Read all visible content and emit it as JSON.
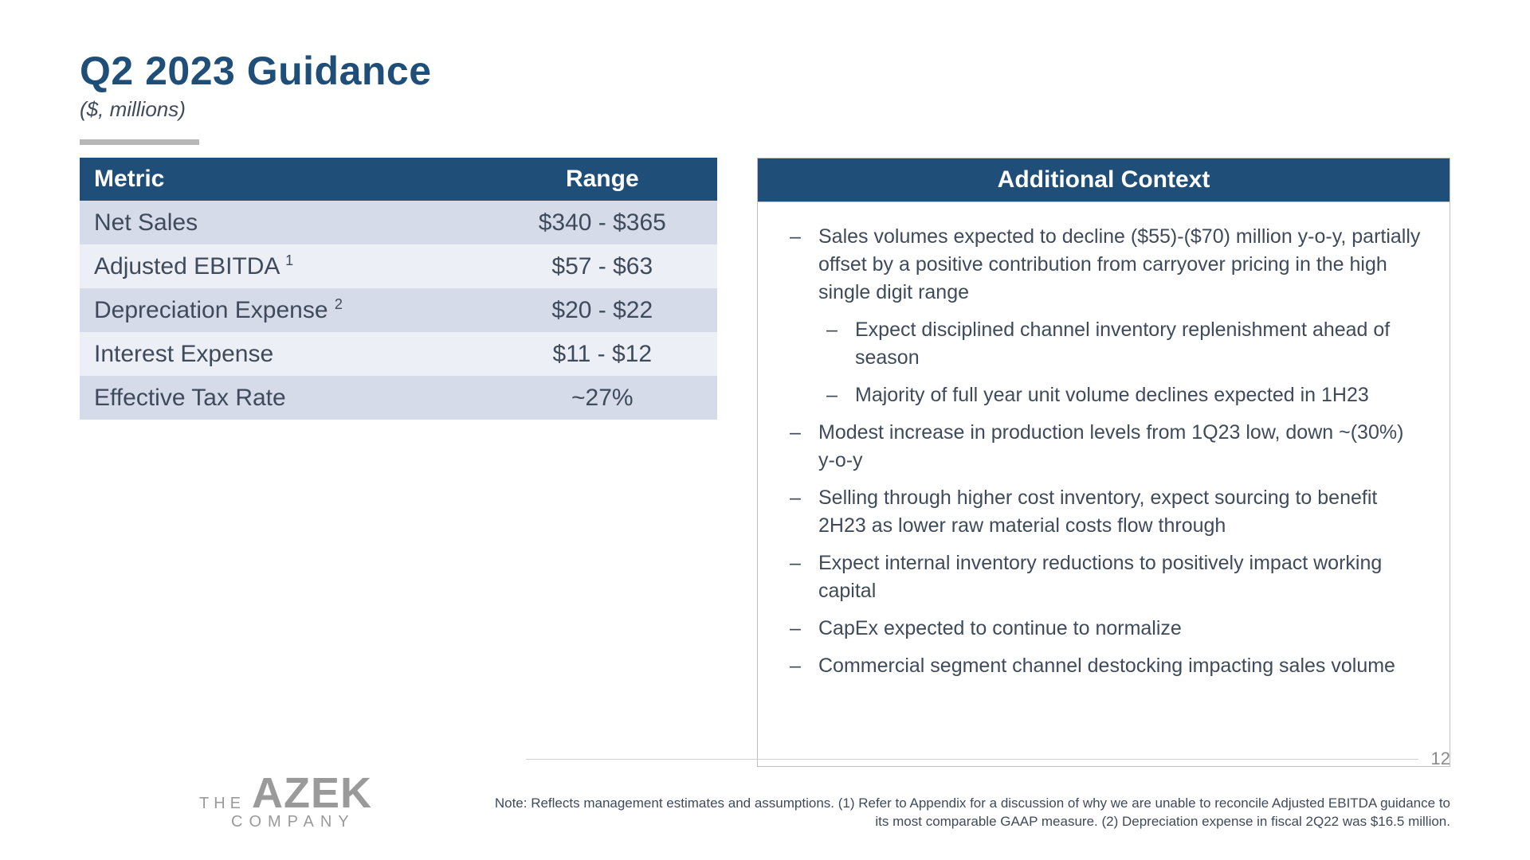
{
  "title": "Q2 2023 Guidance",
  "subtitle": "($, millions)",
  "colors": {
    "brand_blue": "#1f4e79",
    "text": "#3f4a5a",
    "row_odd": "#d6dbe9",
    "row_even": "#edeff6",
    "rule_gray": "#b7b7b7",
    "border_gray": "#bfbfbf",
    "logo_gray": "#9a9a9a"
  },
  "typography": {
    "title_fontsize_pt": 37,
    "subtitle_fontsize_pt": 19,
    "table_fontsize_pt": 22,
    "context_fontsize_pt": 18,
    "note_fontsize_pt": 13
  },
  "metrics_table": {
    "type": "table",
    "columns": [
      "Metric",
      "Range"
    ],
    "rows": [
      {
        "metric": "Net Sales",
        "sup": "",
        "range": "$340 - $365"
      },
      {
        "metric": "Adjusted EBITDA ",
        "sup": "1",
        "range": "$57 - $63"
      },
      {
        "metric": "Depreciation Expense ",
        "sup": "2",
        "range": "$20 - $22"
      },
      {
        "metric": "Interest Expense",
        "sup": "",
        "range": "$11 - $12"
      },
      {
        "metric": "Effective Tax Rate",
        "sup": "",
        "range": "~27%"
      }
    ]
  },
  "context": {
    "header": "Additional Context",
    "items": [
      {
        "text": "Sales volumes expected to decline ($55)-($70) million y-o-y, partially offset by a positive contribution from carryover pricing in the high single digit range",
        "sub": [
          "Expect disciplined channel inventory replenishment ahead of season",
          "Majority of full year unit volume declines expected in 1H23"
        ]
      },
      {
        "text": "Modest increase in production levels from 1Q23 low, down ~(30%) y-o-y",
        "sub": []
      },
      {
        "text": "Selling through higher cost inventory, expect sourcing to benefit 2H23 as lower raw material costs flow through",
        "sub": []
      },
      {
        "text": "Expect internal inventory reductions to positively impact working capital",
        "sub": []
      },
      {
        "text": "CapEx expected to continue to normalize",
        "sub": []
      },
      {
        "text": "Commercial segment channel destocking impacting sales volume",
        "sub": []
      }
    ]
  },
  "footer": {
    "logo": {
      "the": "THE",
      "brand": "AZEK",
      "company": "COMPANY"
    },
    "note": "Note: Reflects management estimates and assumptions. (1) Refer to Appendix for a discussion of why we are unable to reconcile Adjusted EBITDA guidance to its most comparable GAAP measure. (2) Depreciation expense in fiscal 2Q22 was $16.5 million.",
    "page_number": "12"
  }
}
